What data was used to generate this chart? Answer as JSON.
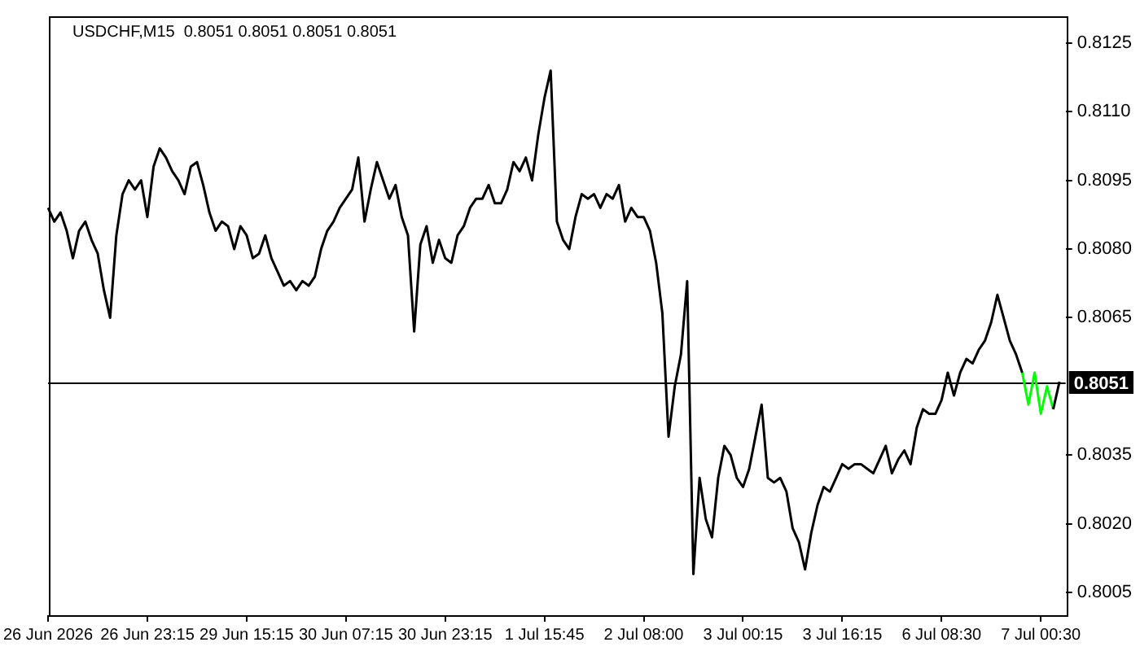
{
  "chart_data": {
    "type": "line",
    "title": "USDCHF,M15  0.8051 0.8051 0.8051 0.8051",
    "marker": "none",
    "categories": [
      "26 Jun 2026",
      null,
      null,
      null,
      null,
      null,
      null,
      null,
      null,
      null,
      null,
      null,
      null,
      null,
      null,
      null,
      "26 Jun 23:15",
      null,
      null,
      null,
      null,
      null,
      null,
      null,
      null,
      null,
      null,
      null,
      null,
      null,
      null,
      null,
      "29 Jun 15:15",
      null,
      null,
      null,
      null,
      null,
      null,
      null,
      null,
      null,
      null,
      null,
      null,
      null,
      null,
      null,
      "30 Jun 07:15",
      null,
      null,
      null,
      null,
      null,
      null,
      null,
      null,
      null,
      null,
      null,
      null,
      null,
      null,
      null,
      "30 Jun 23:15",
      null,
      null,
      null,
      null,
      null,
      null,
      null,
      null,
      null,
      null,
      null,
      null,
      null,
      null,
      null,
      "1 Jul 15:45",
      null,
      null,
      null,
      null,
      null,
      null,
      null,
      null,
      null,
      null,
      null,
      null,
      null,
      null,
      null,
      "2 Jul 08:00",
      null,
      null,
      null,
      null,
      null,
      null,
      null,
      null,
      null,
      null,
      null,
      null,
      null,
      null,
      null,
      "3 Jul 00:15",
      null,
      null,
      null,
      null,
      null,
      null,
      null,
      null,
      null,
      null,
      null,
      null,
      null,
      null,
      null,
      "3 Jul 16:15",
      null,
      null,
      null,
      null,
      null,
      null,
      null,
      null,
      null,
      null,
      null,
      null,
      null,
      null,
      null,
      "6 Jul 08:30",
      null,
      null,
      null,
      null,
      null,
      null,
      null,
      null,
      null,
      null,
      null,
      null,
      null,
      null,
      null,
      "7 Jul 00:30",
      null,
      null,
      null,
      null
    ],
    "series": [
      {
        "color": "#000000",
        "values": [
          0.8089,
          0.8086,
          0.8088,
          0.8084,
          0.8078,
          0.8084,
          0.8086,
          0.8082,
          0.8079,
          0.8071,
          0.8065,
          0.8083,
          0.8092,
          0.8095,
          0.8093,
          0.8095,
          0.8087,
          0.8098,
          0.8102,
          0.81,
          0.8097,
          0.8095,
          0.8092,
          0.8098,
          0.8099,
          0.8094,
          0.8088,
          0.8084,
          0.8086,
          0.8085,
          0.808,
          0.8085,
          0.8083,
          0.8078,
          0.8079,
          0.8083,
          0.8078,
          0.8075,
          0.8072,
          0.8073,
          0.8071,
          0.8073,
          0.8072,
          0.8074,
          0.808,
          0.8084,
          0.8086,
          0.8089,
          0.8091,
          0.8093,
          0.81,
          0.8086,
          0.8093,
          0.8099,
          0.8095,
          0.8091,
          0.8094,
          0.8087,
          0.8083,
          0.8062,
          0.8081,
          0.8085,
          0.8077,
          0.8082,
          0.8078,
          0.8077,
          0.8083,
          0.8085,
          0.8089,
          0.8091,
          0.8091,
          0.8094,
          0.809,
          0.809,
          0.8093,
          0.8099,
          0.8097,
          0.81,
          0.8095,
          0.8105,
          0.8113,
          0.8119,
          0.8086,
          0.8082,
          0.808,
          0.8087,
          0.8092,
          0.8091,
          0.8092,
          0.8089,
          0.8092,
          0.8091,
          0.8094,
          0.8086,
          0.8089,
          0.8087,
          0.8087,
          0.8084,
          0.8077,
          0.8066,
          0.8039,
          0.805,
          0.8057,
          0.8073,
          0.8009,
          0.803,
          0.8021,
          0.8017,
          0.803,
          0.8037,
          0.8035,
          0.803,
          0.8028,
          0.8032,
          0.8039,
          0.8046,
          0.803,
          0.8029,
          0.803,
          0.8027,
          0.8019,
          0.8016,
          0.801,
          0.8018,
          0.8024,
          0.8028,
          0.8027,
          0.803,
          0.8033,
          0.8032,
          0.8033,
          0.8033,
          0.8032,
          0.8031,
          0.8034,
          0.8037,
          0.8031,
          0.8034,
          0.8036,
          0.8033,
          0.8041,
          0.8045,
          0.8044,
          0.8044,
          0.8047,
          0.8053,
          0.8048,
          0.8053,
          0.8056,
          0.8055,
          0.8058,
          0.806,
          0.8064,
          0.807,
          0.8065,
          0.806,
          0.8057,
          0.8053,
          null,
          null,
          null,
          null,
          0.8045,
          0.8051,
          null
        ]
      },
      {
        "color": "#00ff00",
        "values": [
          null,
          null,
          null,
          null,
          null,
          null,
          null,
          null,
          null,
          null,
          null,
          null,
          null,
          null,
          null,
          null,
          null,
          null,
          null,
          null,
          null,
          null,
          null,
          null,
          null,
          null,
          null,
          null,
          null,
          null,
          null,
          null,
          null,
          null,
          null,
          null,
          null,
          null,
          null,
          null,
          null,
          null,
          null,
          null,
          null,
          null,
          null,
          null,
          null,
          null,
          null,
          null,
          null,
          null,
          null,
          null,
          null,
          null,
          null,
          null,
          null,
          null,
          null,
          null,
          null,
          null,
          null,
          null,
          null,
          null,
          null,
          null,
          null,
          null,
          null,
          null,
          null,
          null,
          null,
          null,
          null,
          null,
          null,
          null,
          null,
          null,
          null,
          null,
          null,
          null,
          null,
          null,
          null,
          null,
          null,
          null,
          null,
          null,
          null,
          null,
          null,
          null,
          null,
          null,
          null,
          null,
          null,
          null,
          null,
          null,
          null,
          null,
          null,
          null,
          null,
          null,
          null,
          null,
          null,
          null,
          null,
          null,
          null,
          null,
          null,
          null,
          null,
          null,
          null,
          null,
          null,
          null,
          null,
          null,
          null,
          null,
          null,
          null,
          null,
          null,
          null,
          null,
          null,
          null,
          null,
          null,
          null,
          null,
          null,
          null,
          null,
          null,
          null,
          null,
          null,
          null,
          null,
          0.8053,
          0.8046,
          0.8053,
          0.8044,
          0.805,
          0.8045,
          null,
          null
        ]
      }
    ],
    "ylim": [
      0.8,
      0.8131
    ],
    "yticks": [
      0.8005,
      {
        "value": 0.802,
        "label": "0.8020"
      },
      0.8035,
      0.8065,
      {
        "value": 0.808,
        "label": "0.8080"
      },
      0.8095,
      {
        "value": 0.811,
        "label": "0.8110"
      },
      0.8125
    ],
    "ref_lines": [
      {
        "axis": "y",
        "value": 0.8051,
        "label": "0.8051",
        "color": "#000000"
      }
    ]
  }
}
